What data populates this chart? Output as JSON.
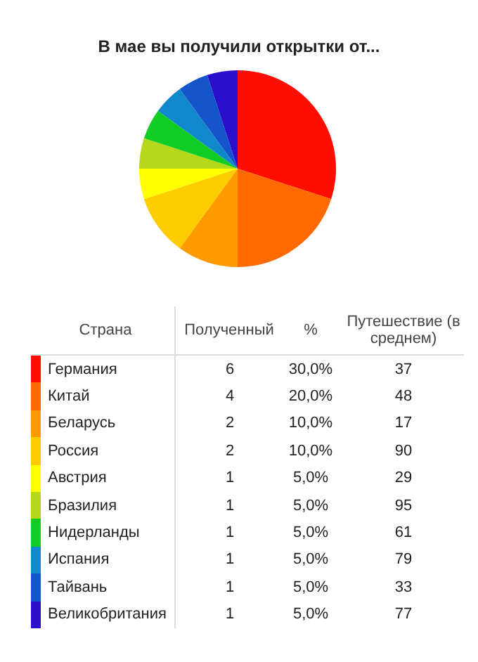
{
  "chart_data": {
    "type": "pie",
    "title": "В мае вы получили открытки от...",
    "legend_title": "Страна",
    "legend": "bottom",
    "data_labels": true,
    "categories": [
      "Германия",
      "Китай",
      "Беларусь",
      "Россия",
      "Австрия",
      "Бразилия",
      "Нидерланды",
      "Испания",
      "Тайвань",
      "Великобритания"
    ],
    "colors": [
      "#ff0d00",
      "#ff6a00",
      "#ff9a00",
      "#ffcc00",
      "#ffff00",
      "#b5d91a",
      "#11cc22",
      "#1188cc",
      "#1455cc",
      "#2a10cc"
    ],
    "values": [
      6,
      4,
      2,
      2,
      1,
      1,
      1,
      1,
      1,
      1
    ],
    "annotations": [
      "Полученный",
      "%",
      "Путешествие (в среднем)",
      "30,0%",
      "37",
      "20,0%",
      "48",
      "10,0%",
      "17",
      "10,0%",
      "90",
      "5,0%",
      "29",
      "5,0%",
      "95",
      "5,0%",
      "61",
      "5,0%",
      "79",
      "5,0%",
      "33",
      "5,0%",
      "77"
    ]
  }
}
